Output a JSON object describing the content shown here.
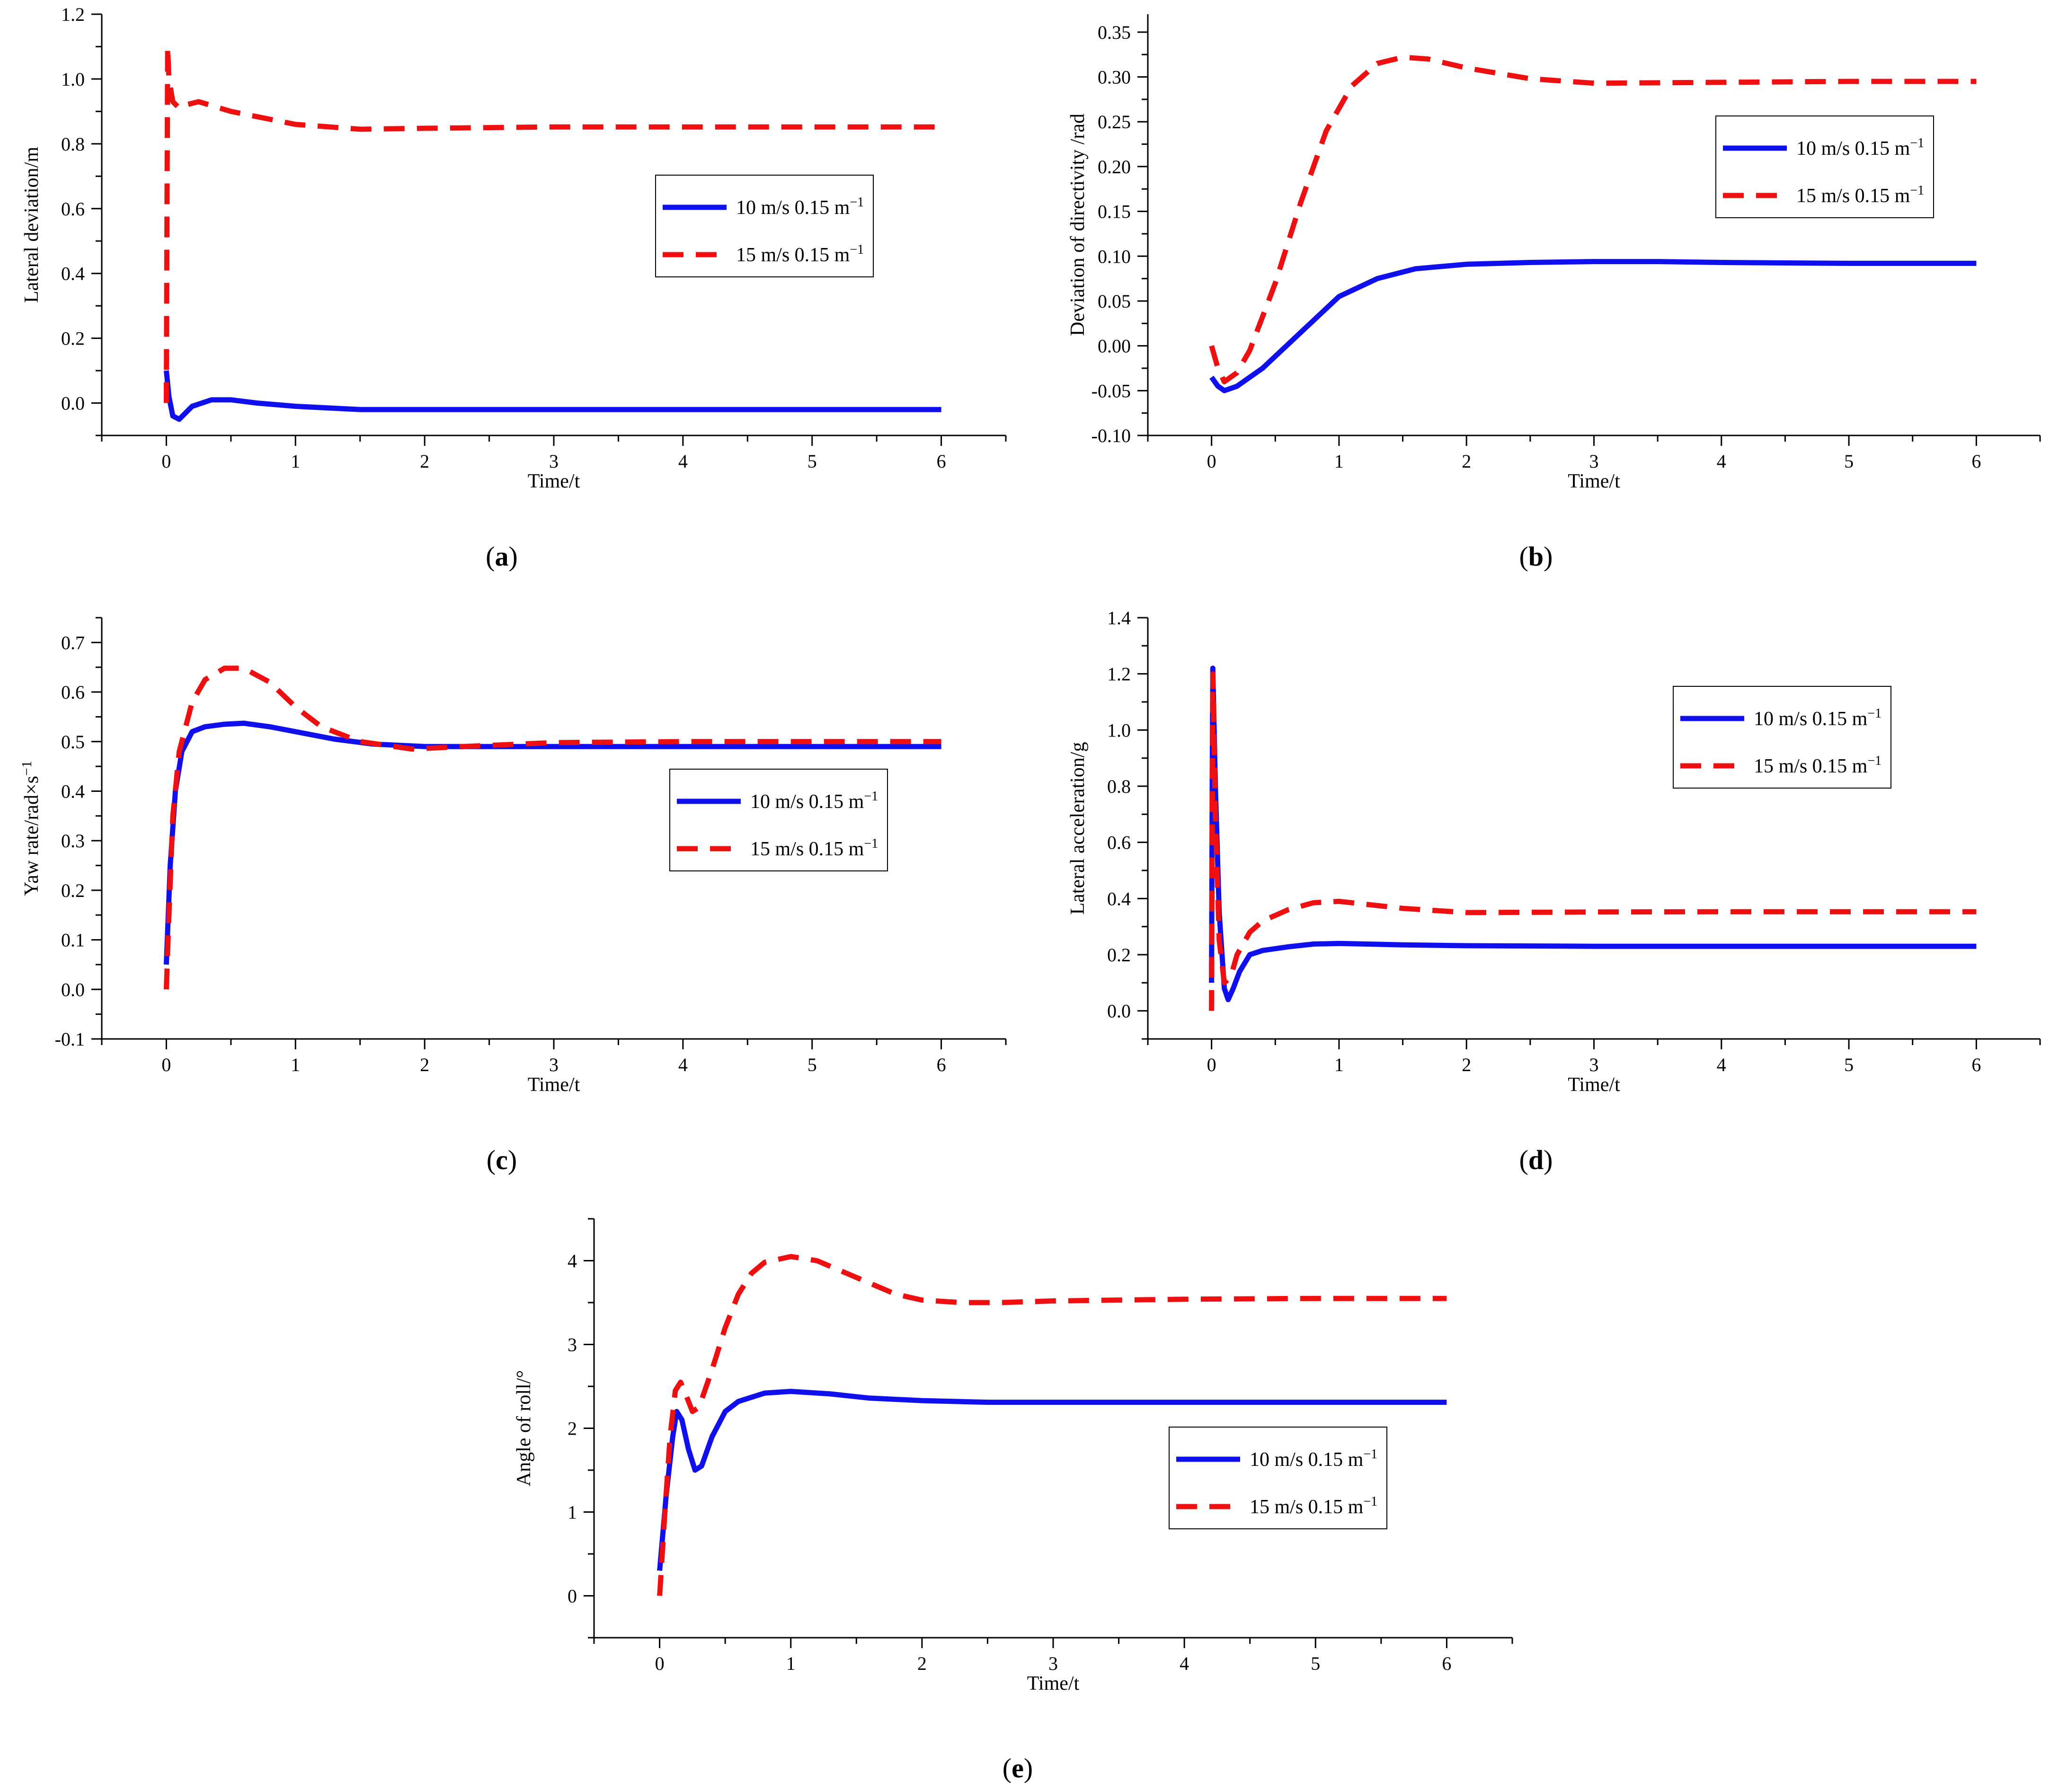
{
  "figure": {
    "series_colors": {
      "s10": "#1010ee",
      "s15": "#ee1010"
    },
    "legend_labels": {
      "s10": "10 m/s 0.15 m",
      "s15": "15 m/s 0.15 m",
      "superscript": "−1"
    }
  },
  "chart_data": [
    {
      "id": "a",
      "type": "line",
      "caption_letter": "a",
      "xlabel": "Time/t",
      "ylabel": "Lateral deviation/m",
      "xlim": [
        -0.5,
        6.5
      ],
      "ylim": [
        -0.1,
        1.2
      ],
      "xticks": [
        0,
        1,
        2,
        3,
        4,
        5,
        6
      ],
      "yticks": [
        0.0,
        0.2,
        0.4,
        0.6,
        0.8,
        1.0,
        1.2
      ],
      "ytick_labels": [
        "0.0",
        "0.2",
        "0.4",
        "0.6",
        "0.8",
        "1.0",
        "1.2"
      ],
      "legend_position": "middle-right",
      "series": [
        {
          "name": "10 m/s 0.15 m−1",
          "style": "solid",
          "x": [
            0,
            0.02,
            0.05,
            0.1,
            0.2,
            0.35,
            0.5,
            0.7,
            1.0,
            1.5,
            2.0,
            3.0,
            4.0,
            5.0,
            6.0
          ],
          "y": [
            0.1,
            0.02,
            -0.04,
            -0.05,
            -0.01,
            0.01,
            0.01,
            0.0,
            -0.01,
            -0.02,
            -0.02,
            -0.02,
            -0.02,
            -0.02,
            -0.02
          ]
        },
        {
          "name": "15 m/s 0.15 m−1",
          "style": "dashed",
          "x": [
            0,
            0.005,
            0.01,
            0.02,
            0.05,
            0.1,
            0.15,
            0.25,
            0.5,
            1.0,
            1.5,
            2.0,
            3.0,
            4.0,
            5.0,
            6.0
          ],
          "y": [
            0.0,
            0.6,
            1.1,
            1.0,
            0.93,
            0.91,
            0.92,
            0.93,
            0.9,
            0.86,
            0.845,
            0.848,
            0.852,
            0.852,
            0.852,
            0.852
          ]
        }
      ]
    },
    {
      "id": "b",
      "type": "line",
      "caption_letter": "b",
      "xlabel": "Time/t",
      "ylabel": "Deviation of directivity /rad",
      "xlim": [
        -0.5,
        6.5
      ],
      "ylim": [
        -0.1,
        0.37
      ],
      "xticks": [
        0,
        1,
        2,
        3,
        4,
        5,
        6
      ],
      "yticks": [
        -0.1,
        -0.05,
        0.0,
        0.05,
        0.1,
        0.15,
        0.2,
        0.25,
        0.3,
        0.35
      ],
      "ytick_labels": [
        "-0.10",
        "-0.05",
        "0.00",
        "0.05",
        "0.10",
        "0.15",
        "0.20",
        "0.25",
        "0.30",
        "0.35"
      ],
      "legend_position": "upper-right",
      "series": [
        {
          "name": "10 m/s 0.15 m−1",
          "style": "solid",
          "x": [
            0,
            0.05,
            0.1,
            0.2,
            0.4,
            0.7,
            1.0,
            1.3,
            1.6,
            2.0,
            2.5,
            3.0,
            3.5,
            4.0,
            5.0,
            6.0
          ],
          "y": [
            -0.035,
            -0.045,
            -0.05,
            -0.045,
            -0.025,
            0.015,
            0.055,
            0.075,
            0.086,
            0.091,
            0.093,
            0.094,
            0.094,
            0.093,
            0.092,
            0.092
          ]
        },
        {
          "name": "15 m/s 0.15 m−1",
          "style": "dashed",
          "x": [
            0,
            0.05,
            0.1,
            0.2,
            0.3,
            0.5,
            0.7,
            0.9,
            1.1,
            1.3,
            1.5,
            1.7,
            2.0,
            2.5,
            3.0,
            4.0,
            5.0,
            6.0
          ],
          "y": [
            0.0,
            -0.025,
            -0.04,
            -0.03,
            -0.005,
            0.07,
            0.16,
            0.24,
            0.29,
            0.315,
            0.322,
            0.32,
            0.31,
            0.298,
            0.293,
            0.294,
            0.295,
            0.295
          ]
        }
      ]
    },
    {
      "id": "c",
      "type": "line",
      "caption_letter": "c",
      "xlabel": "Time/t",
      "ylabel": "Yaw rate/rad×s",
      "ylabel_superscript": "−1",
      "xlim": [
        -0.5,
        6.5
      ],
      "ylim": [
        -0.1,
        0.75
      ],
      "xticks": [
        0,
        1,
        2,
        3,
        4,
        5,
        6
      ],
      "yticks": [
        -0.1,
        0.0,
        0.1,
        0.2,
        0.3,
        0.4,
        0.5,
        0.6,
        0.7
      ],
      "ytick_labels": [
        "-0.1",
        "0.0",
        "0.1",
        "0.2",
        "0.3",
        "0.4",
        "0.5",
        "0.6",
        "0.7"
      ],
      "legend_position": "middle-right",
      "series": [
        {
          "name": "10 m/s 0.15 m−1",
          "style": "solid",
          "x": [
            0.0,
            0.03,
            0.07,
            0.12,
            0.2,
            0.3,
            0.45,
            0.6,
            0.8,
            1.0,
            1.3,
            1.6,
            2.0,
            2.5,
            3.0,
            4.0,
            5.0,
            6.0
          ],
          "y": [
            0.05,
            0.25,
            0.4,
            0.48,
            0.52,
            0.53,
            0.535,
            0.537,
            0.53,
            0.52,
            0.505,
            0.495,
            0.49,
            0.49,
            0.49,
            0.49,
            0.49,
            0.49
          ]
        },
        {
          "name": "15 m/s 0.15 m−1",
          "style": "dashed",
          "x": [
            0.0,
            0.02,
            0.05,
            0.1,
            0.2,
            0.3,
            0.45,
            0.6,
            0.8,
            1.0,
            1.2,
            1.5,
            1.9,
            2.3,
            3.0,
            4.0,
            5.0,
            6.0
          ],
          "y": [
            0.0,
            0.15,
            0.35,
            0.48,
            0.58,
            0.625,
            0.648,
            0.648,
            0.62,
            0.57,
            0.53,
            0.5,
            0.485,
            0.49,
            0.498,
            0.5,
            0.5,
            0.5
          ]
        }
      ]
    },
    {
      "id": "d",
      "type": "line",
      "caption_letter": "d",
      "xlabel": "Time/t",
      "ylabel": "Lateral acceleration/g",
      "xlim": [
        -0.5,
        6.5
      ],
      "ylim": [
        -0.1,
        1.4
      ],
      "xticks": [
        0,
        1,
        2,
        3,
        4,
        5,
        6
      ],
      "yticks": [
        0.0,
        0.2,
        0.4,
        0.6,
        0.8,
        1.0,
        1.2,
        1.4
      ],
      "ytick_labels": [
        "0.0",
        "0.2",
        "0.4",
        "0.6",
        "0.8",
        "1.0",
        "1.2",
        "1.4"
      ],
      "legend_position": "upper-right",
      "series": [
        {
          "name": "10 m/s 0.15 m−1",
          "style": "solid",
          "x": [
            0.0,
            0.005,
            0.01,
            0.03,
            0.06,
            0.1,
            0.13,
            0.17,
            0.22,
            0.3,
            0.4,
            0.6,
            0.8,
            1.0,
            1.5,
            2.0,
            3.0,
            4.0,
            5.0,
            6.0
          ],
          "y": [
            0.1,
            0.8,
            1.22,
            0.8,
            0.35,
            0.08,
            0.04,
            0.08,
            0.14,
            0.2,
            0.215,
            0.228,
            0.238,
            0.24,
            0.235,
            0.232,
            0.23,
            0.23,
            0.23,
            0.23
          ]
        },
        {
          "name": "15 m/s 0.15 m−1",
          "style": "dashed",
          "x": [
            0.0,
            0.005,
            0.01,
            0.03,
            0.06,
            0.1,
            0.15,
            0.2,
            0.3,
            0.4,
            0.6,
            0.8,
            1.0,
            1.2,
            1.5,
            2.0,
            3.0,
            4.0,
            5.0,
            6.0
          ],
          "y": [
            0.0,
            0.6,
            1.2,
            0.7,
            0.25,
            0.1,
            0.12,
            0.2,
            0.28,
            0.32,
            0.36,
            0.385,
            0.39,
            0.38,
            0.365,
            0.35,
            0.352,
            0.353,
            0.353,
            0.353
          ]
        }
      ]
    },
    {
      "id": "e",
      "type": "line",
      "caption_letter": "e",
      "xlabel": "Time/t",
      "ylabel": "Angle of roll/°",
      "xlim": [
        -0.5,
        6.5
      ],
      "ylim": [
        -0.5,
        4.5
      ],
      "xticks": [
        0,
        1,
        2,
        3,
        4,
        5,
        6
      ],
      "yticks": [
        0,
        1,
        2,
        3,
        4
      ],
      "ytick_labels": [
        "0",
        "1",
        "2",
        "3",
        "4"
      ],
      "legend_position": "lower-right",
      "series": [
        {
          "name": "10 m/s 0.15 m−1",
          "style": "solid",
          "x": [
            0.0,
            0.05,
            0.1,
            0.13,
            0.17,
            0.22,
            0.27,
            0.32,
            0.4,
            0.5,
            0.6,
            0.8,
            1.0,
            1.3,
            1.6,
            2.0,
            2.5,
            3.0,
            4.0,
            5.0,
            6.0
          ],
          "y": [
            0.3,
            1.2,
            1.9,
            2.2,
            2.1,
            1.75,
            1.5,
            1.55,
            1.9,
            2.2,
            2.32,
            2.42,
            2.44,
            2.41,
            2.36,
            2.33,
            2.31,
            2.31,
            2.31,
            2.31,
            2.31
          ]
        },
        {
          "name": "15 m/s 0.15 m−1",
          "style": "dashed",
          "x": [
            0.0,
            0.04,
            0.08,
            0.12,
            0.16,
            0.2,
            0.25,
            0.3,
            0.4,
            0.5,
            0.6,
            0.7,
            0.8,
            1.0,
            1.2,
            1.5,
            1.8,
            2.0,
            2.3,
            2.6,
            3.0,
            4.0,
            5.0,
            6.0
          ],
          "y": [
            0.0,
            1.0,
            1.9,
            2.45,
            2.55,
            2.4,
            2.2,
            2.25,
            2.7,
            3.2,
            3.6,
            3.85,
            3.98,
            4.05,
            4.0,
            3.8,
            3.6,
            3.53,
            3.5,
            3.5,
            3.52,
            3.54,
            3.55,
            3.55
          ]
        }
      ]
    }
  ]
}
